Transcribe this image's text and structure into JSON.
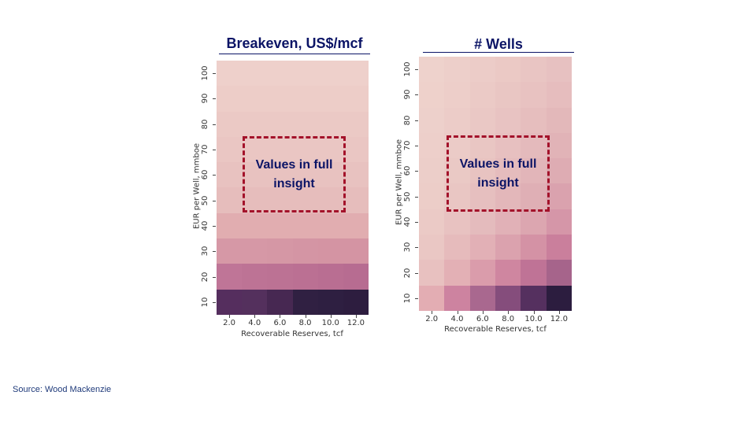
{
  "source": "Source:  Wood Mackenzie",
  "overlay_text": "Values in full insight",
  "chart_data": [
    {
      "type": "heatmap",
      "title": "Breakeven, US$/mcf",
      "xlabel": "Recoverable Reserves, tcf",
      "ylabel": "EUR per Well, mmboe",
      "x": [
        "2.0",
        "4.0",
        "6.0",
        "8.0",
        "10.0",
        "12.0"
      ],
      "y": [
        "100",
        "90",
        "80",
        "70",
        "60",
        "50",
        "40",
        "30",
        "20",
        "10"
      ],
      "values_hidden": true,
      "annotation": "Values in full insight",
      "cell_colors": [
        [
          "#eed0cb",
          "#eed0cb",
          "#eed0cb",
          "#eed0cb",
          "#eed0cb",
          "#eed0cb"
        ],
        [
          "#edcdc8",
          "#edcdc8",
          "#edcdc8",
          "#edcdc8",
          "#edcdc8",
          "#edcdc8"
        ],
        [
          "#ebc9c5",
          "#ebc9c5",
          "#ebc9c5",
          "#ebc9c5",
          "#ebc9c5",
          "#ebc9c5"
        ],
        [
          "#eac6c3",
          "#eac6c3",
          "#eac6c3",
          "#eac6c3",
          "#eac6c3",
          "#eac6c3"
        ],
        [
          "#e8c2c0",
          "#e8c2c0",
          "#e8c2c0",
          "#e8c2c0",
          "#e8c2c0",
          "#e8c2c0"
        ],
        [
          "#e6bdbc",
          "#e6bdbc",
          "#e6bdbc",
          "#e6bdbc",
          "#e6bdbc",
          "#e6bdbc"
        ],
        [
          "#e1adb0",
          "#e1adb0",
          "#e1adb0",
          "#e1adb0",
          "#e1adb0",
          "#e1adb0"
        ],
        [
          "#d698a6",
          "#d698a6",
          "#d597a5",
          "#d495a4",
          "#d494a3",
          "#d494a3"
        ],
        [
          "#bf7597",
          "#bd7395",
          "#bc7294",
          "#bb7093",
          "#b96e92",
          "#b76c91"
        ],
        [
          "#552e5e",
          "#54305d",
          "#472852",
          "#302042",
          "#2e1f41",
          "#2d1d3f"
        ]
      ]
    },
    {
      "type": "heatmap",
      "title": "# Wells",
      "xlabel": "Recoverable Reserves, tcf",
      "ylabel": "EUR per Well, mmboe",
      "x": [
        "2.0",
        "4.0",
        "6.0",
        "8.0",
        "10.0",
        "12.0"
      ],
      "y": [
        "100",
        "90",
        "80",
        "70",
        "60",
        "50",
        "40",
        "30",
        "20",
        "10"
      ],
      "values_hidden": true,
      "annotation": "Values in full insight",
      "cell_colors": [
        [
          "#eed2cc",
          "#edcfca",
          "#ecccc8",
          "#ebc9c5",
          "#e9c5c3",
          "#e7c1c1"
        ],
        [
          "#eed1cb",
          "#edcec9",
          "#ebcac6",
          "#e9c6c3",
          "#e8c2c1",
          "#e6bdbe"
        ],
        [
          "#edd0cb",
          "#ecccc8",
          "#eac8c5",
          "#e8c3c2",
          "#e6bebe",
          "#e3b8ba"
        ],
        [
          "#edcfca",
          "#ebcbc7",
          "#e9c6c3",
          "#e7c0c0",
          "#e4babc",
          "#e1b3b7"
        ],
        [
          "#eccec9",
          "#eac9c5",
          "#e8c3c1",
          "#e5bcbd",
          "#e2b5b9",
          "#deacb3"
        ],
        [
          "#eccdc8",
          "#e9c6c3",
          "#e6bfbf",
          "#e3b7ba",
          "#dfafb5",
          "#daa2ae"
        ],
        [
          "#ebcac6",
          "#e8c2c1",
          "#e4bbbd",
          "#e1b1b7",
          "#dca6b0",
          "#d596a8"
        ],
        [
          "#eac7c4",
          "#e6bbbc",
          "#e2b0b6",
          "#dba2ae",
          "#d492a5",
          "#ca7f9c"
        ],
        [
          "#e8c1c0",
          "#e3b0b5",
          "#da9cab",
          "#cf86a0",
          "#bf7396",
          "#a6648b"
        ],
        [
          "#e3adb3",
          "#cd83a0",
          "#a9688f",
          "#854d7c",
          "#55305f",
          "#2c1d3f"
        ]
      ]
    }
  ]
}
